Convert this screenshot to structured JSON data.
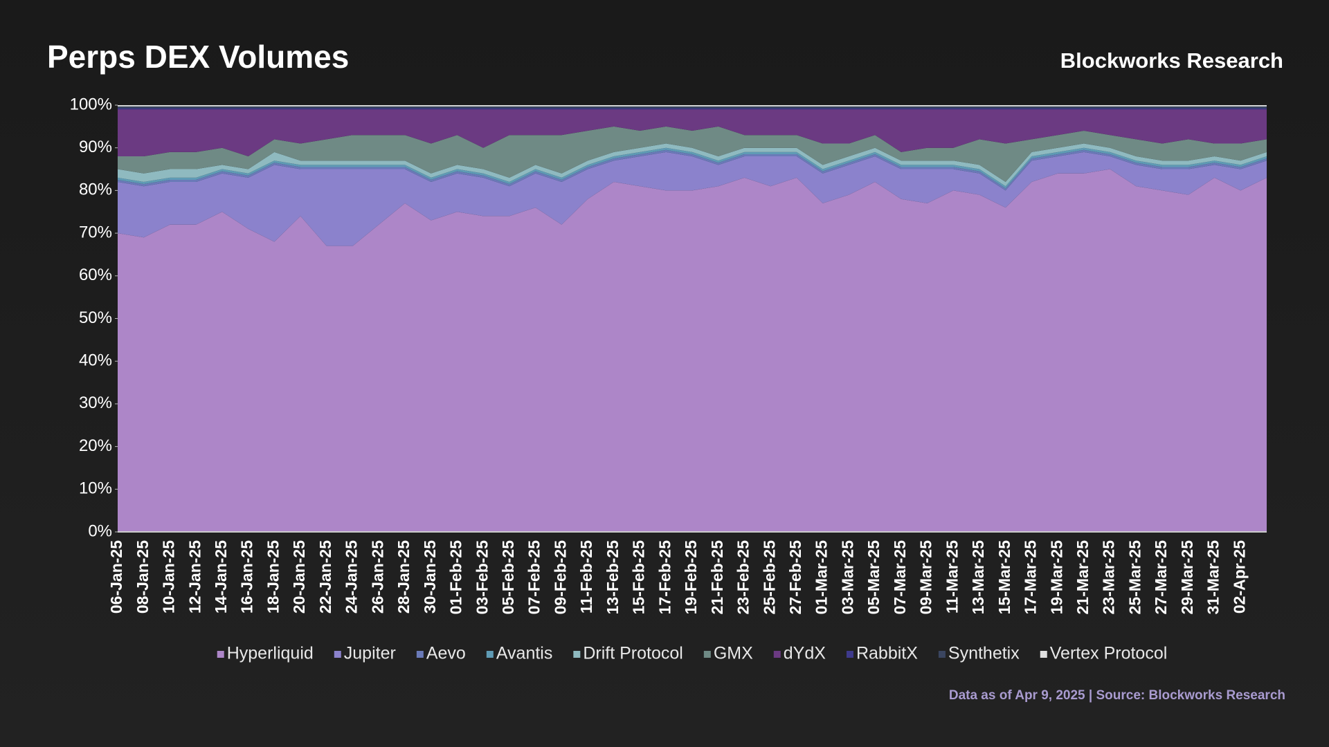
{
  "chart_data": {
    "type": "stacked_area",
    "title": "Perps DEX Volumes",
    "brand": "Blockworks Research",
    "footnote": "Data as of Apr 9, 2025 | Source: Blockworks Research",
    "categories": [
      "06-Jan-25",
      "08-Jan-25",
      "10-Jan-25",
      "12-Jan-25",
      "14-Jan-25",
      "16-Jan-25",
      "18-Jan-25",
      "20-Jan-25",
      "22-Jan-25",
      "24-Jan-25",
      "26-Jan-25",
      "28-Jan-25",
      "30-Jan-25",
      "01-Feb-25",
      "03-Feb-25",
      "05-Feb-25",
      "07-Feb-25",
      "09-Feb-25",
      "11-Feb-25",
      "13-Feb-25",
      "15-Feb-25",
      "17-Feb-25",
      "19-Feb-25",
      "21-Feb-25",
      "23-Feb-25",
      "25-Feb-25",
      "27-Feb-25",
      "01-Mar-25",
      "03-Mar-25",
      "05-Mar-25",
      "07-Mar-25",
      "09-Mar-25",
      "11-Mar-25",
      "13-Mar-25",
      "15-Mar-25",
      "17-Mar-25",
      "19-Mar-25",
      "21-Mar-25",
      "23-Mar-25",
      "25-Mar-25",
      "27-Mar-25",
      "29-Mar-25",
      "31-Mar-25",
      "02-Apr-25",
      null
    ],
    "series": [
      {
        "name": "Hyperliquid",
        "color": "#ad86c8",
        "values": [
          70,
          69,
          72,
          72,
          75,
          71,
          68,
          74,
          67,
          67,
          72,
          77,
          73,
          75,
          74,
          74,
          76,
          72,
          78,
          82,
          81,
          80,
          80,
          81,
          83,
          81,
          83,
          77,
          79,
          82,
          78,
          77,
          80,
          79,
          76,
          82,
          84,
          84,
          85,
          81,
          80,
          79,
          83,
          80,
          83
        ]
      },
      {
        "name": "Jupiter",
        "color": "#8b82cc",
        "values": [
          12,
          12,
          10,
          10,
          9,
          12,
          18,
          11,
          18,
          18,
          13,
          8,
          9,
          9,
          9,
          7,
          8,
          10,
          7,
          5,
          7,
          9,
          8,
          5,
          5,
          7,
          5,
          7,
          7,
          6,
          7,
          8,
          5,
          5,
          4,
          5,
          4,
          5,
          3,
          5,
          5,
          6,
          3,
          5,
          4
        ]
      },
      {
        "name": "Aevo",
        "color": "#6a7ab8",
        "values": [
          0.5,
          0.5,
          0.5,
          0.5,
          0.5,
          0.5,
          0.5,
          0.5,
          0.5,
          0.5,
          0.5,
          0.5,
          0.5,
          0.5,
          0.5,
          0.5,
          0.5,
          0.5,
          0.5,
          0.5,
          0.5,
          0.5,
          0.5,
          0.5,
          0.5,
          0.5,
          0.5,
          0.5,
          0.5,
          0.5,
          0.5,
          0.5,
          0.5,
          0.5,
          0.5,
          0.5,
          0.5,
          0.5,
          0.5,
          0.5,
          0.5,
          0.5,
          0.5,
          0.5,
          0.5
        ]
      },
      {
        "name": "Avantis",
        "color": "#5f9bb5",
        "values": [
          0.5,
          0.5,
          0.5,
          0.5,
          0.5,
          0.5,
          0.5,
          0.5,
          0.5,
          0.5,
          0.5,
          0.5,
          0.5,
          0.5,
          0.5,
          0.5,
          0.5,
          0.5,
          0.5,
          0.5,
          0.5,
          0.5,
          0.5,
          0.5,
          0.5,
          0.5,
          0.5,
          0.5,
          0.5,
          0.5,
          0.5,
          0.5,
          0.5,
          0.5,
          0.5,
          0.5,
          0.5,
          0.5,
          0.5,
          0.5,
          0.5,
          0.5,
          0.5,
          0.5,
          0.5
        ]
      },
      {
        "name": "Drift Protocol",
        "color": "#8fbac0",
        "values": [
          2,
          2,
          2,
          2,
          1,
          1,
          2,
          1,
          1,
          1,
          1,
          1,
          1,
          1,
          1,
          1,
          1,
          1,
          1,
          1,
          1,
          1,
          1,
          1,
          1,
          1,
          1,
          1,
          1,
          1,
          1,
          1,
          1,
          1,
          1,
          1,
          1,
          1,
          1,
          1,
          1,
          1,
          1,
          1,
          1
        ]
      },
      {
        "name": "GMX",
        "color": "#6f8a85",
        "values": [
          3,
          4,
          4,
          4,
          4,
          3,
          3,
          4,
          5,
          6,
          6,
          6,
          7,
          7,
          5,
          10,
          7,
          9,
          7,
          6,
          4,
          4,
          4,
          7,
          3,
          3,
          3,
          5,
          3,
          3,
          2,
          3,
          3,
          6,
          9,
          3,
          3,
          3,
          3,
          4,
          4,
          5,
          3,
          4,
          3
        ]
      },
      {
        "name": "dYdX",
        "color": "#6b3a82",
        "values": [
          11,
          11,
          10,
          10,
          9,
          11,
          7,
          8,
          7,
          6,
          6,
          6,
          8,
          6,
          9,
          6,
          6,
          6,
          5,
          4,
          5,
          4,
          5,
          4,
          6,
          6,
          6,
          8,
          8,
          6,
          10,
          9,
          9,
          7,
          8,
          7,
          6,
          5,
          6,
          7,
          8,
          7,
          8,
          8,
          7
        ]
      },
      {
        "name": "RabbitX",
        "color": "#3e3a8c",
        "values": [
          0.3,
          0.3,
          0.3,
          0.3,
          0.3,
          0.3,
          0.3,
          0.3,
          0.3,
          0.3,
          0.3,
          0.3,
          0.3,
          0.3,
          0.3,
          0.3,
          0.3,
          0.3,
          0.3,
          0.3,
          0.3,
          0.3,
          0.3,
          0.3,
          0.3,
          0.3,
          0.3,
          0.3,
          0.3,
          0.3,
          0.3,
          0.3,
          0.3,
          0.3,
          0.3,
          0.3,
          0.3,
          0.3,
          0.3,
          0.3,
          0.3,
          0.3,
          0.3,
          0.3,
          0.3
        ]
      },
      {
        "name": "Synthetix",
        "color": "#3a4560",
        "values": [
          0.4,
          0.4,
          0.4,
          0.4,
          0.4,
          0.4,
          0.4,
          0.4,
          0.4,
          0.4,
          0.4,
          0.4,
          0.4,
          0.4,
          0.4,
          0.4,
          0.4,
          0.4,
          0.4,
          0.4,
          0.4,
          0.4,
          0.4,
          0.4,
          0.4,
          0.4,
          0.4,
          0.4,
          0.4,
          0.4,
          0.4,
          0.4,
          0.4,
          0.4,
          0.4,
          0.4,
          0.4,
          0.4,
          0.4,
          0.4,
          0.4,
          0.4,
          0.4,
          0.4,
          0.4
        ]
      },
      {
        "name": "Vertex Protocol",
        "color": "#e0e0e0",
        "values": [
          0.3,
          0.3,
          0.3,
          0.3,
          0.3,
          0.3,
          0.3,
          0.3,
          0.3,
          0.3,
          0.3,
          0.3,
          0.3,
          0.3,
          0.3,
          0.3,
          0.3,
          0.3,
          0.3,
          0.3,
          0.3,
          0.3,
          0.3,
          0.3,
          0.3,
          0.3,
          0.3,
          0.3,
          0.3,
          0.3,
          0.3,
          0.3,
          0.3,
          0.3,
          0.3,
          0.3,
          0.3,
          0.3,
          0.3,
          0.3,
          0.3,
          0.3,
          0.3,
          0.3,
          0.3
        ]
      }
    ],
    "ylim": [
      0,
      100
    ],
    "yticks": [
      {
        "value": 0,
        "label": "0%"
      },
      {
        "value": 10,
        "label": "10%"
      },
      {
        "value": 20,
        "label": "20%"
      },
      {
        "value": 30,
        "label": "30%"
      },
      {
        "value": 40,
        "label": "40%"
      },
      {
        "value": 50,
        "label": "50%"
      },
      {
        "value": 60,
        "label": "60%"
      },
      {
        "value": 70,
        "label": "70%"
      },
      {
        "value": 80,
        "label": "80%"
      },
      {
        "value": 90,
        "label": "90%"
      },
      {
        "value": 100,
        "label": "100%"
      }
    ],
    "legend": "bottom"
  }
}
